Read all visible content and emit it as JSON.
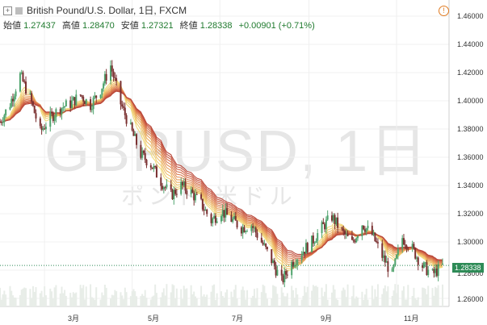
{
  "header": {
    "title": "British Pound/U.S. Dollar, 1日, FXCM",
    "open_label": "始値",
    "open_value": "1.27437",
    "high_label": "高値",
    "high_value": "1.28470",
    "low_label": "安値",
    "low_value": "1.27321",
    "close_label": "終値",
    "close_value": "1.28338",
    "change": "+0.00901 (+0.71%)"
  },
  "watermark": {
    "symbol": "GBPUSD, 1日",
    "name": "ポンド/米ドル"
  },
  "icons": {
    "expand": "expand-icon",
    "symbol": "symbol-icon",
    "alert": "alert-icon"
  },
  "colors": {
    "up": "#4fa36d",
    "down": "#7a3030",
    "price_tag": "#2e8b57",
    "ribbon": [
      "#f1da7a",
      "#f0cf74",
      "#eebf6a",
      "#ebb062",
      "#e79f5c",
      "#e28f56",
      "#dc7e51",
      "#d56e4b",
      "#cd6045",
      "#c4533f",
      "#b94739"
    ]
  },
  "chart_data": {
    "type": "candlestick",
    "title": "British Pound/U.S. Dollar, 1日, FXCM",
    "xlabel": "",
    "ylabel": "",
    "ylim": [
      1.25,
      1.47
    ],
    "y_ticks": [
      "1.26000",
      "1.28000",
      "1.30000",
      "1.32000",
      "1.34000",
      "1.36000",
      "1.38000",
      "1.40000",
      "1.42000",
      "1.44000",
      "1.46000"
    ],
    "x_ticks": [
      "3月",
      "5月",
      "7月",
      "9月",
      "11月"
    ],
    "last_price": "1.28338",
    "close_path": [
      [
        "2018-01-29",
        1.385
      ],
      [
        "2018-02-05",
        1.398
      ],
      [
        "2018-02-12",
        1.418
      ],
      [
        "2018-02-19",
        1.402
      ],
      [
        "2018-02-26",
        1.378
      ],
      [
        "2018-03-05",
        1.388
      ],
      [
        "2018-03-12",
        1.395
      ],
      [
        "2018-03-19",
        1.398
      ],
      [
        "2018-03-26",
        1.404
      ],
      [
        "2018-04-02",
        1.397
      ],
      [
        "2018-04-09",
        1.408
      ],
      [
        "2018-04-16",
        1.425
      ],
      [
        "2018-04-23",
        1.398
      ],
      [
        "2018-04-30",
        1.38
      ],
      [
        "2018-05-07",
        1.362
      ],
      [
        "2018-05-14",
        1.355
      ],
      [
        "2018-05-21",
        1.343
      ],
      [
        "2018-05-28",
        1.333
      ],
      [
        "2018-06-04",
        1.34
      ],
      [
        "2018-06-11",
        1.335
      ],
      [
        "2018-06-18",
        1.327
      ],
      [
        "2018-06-25",
        1.315
      ],
      [
        "2018-07-02",
        1.322
      ],
      [
        "2018-07-09",
        1.316
      ],
      [
        "2018-07-16",
        1.31
      ],
      [
        "2018-07-23",
        1.312
      ],
      [
        "2018-07-30",
        1.3
      ],
      [
        "2018-08-06",
        1.287
      ],
      [
        "2018-08-13",
        1.272
      ],
      [
        "2018-08-20",
        1.285
      ],
      [
        "2018-08-27",
        1.293
      ],
      [
        "2018-09-03",
        1.3
      ],
      [
        "2018-09-10",
        1.31
      ],
      [
        "2018-09-17",
        1.318
      ],
      [
        "2018-09-24",
        1.307
      ],
      [
        "2018-10-01",
        1.299
      ],
      [
        "2018-10-08",
        1.313
      ],
      [
        "2018-10-15",
        1.305
      ],
      [
        "2018-10-22",
        1.29
      ],
      [
        "2018-10-29",
        1.277
      ],
      [
        "2018-11-05",
        1.303
      ],
      [
        "2018-11-12",
        1.295
      ],
      [
        "2018-11-19",
        1.283
      ],
      [
        "2018-11-26",
        1.277
      ],
      [
        "2018-12-03",
        1.283
      ]
    ]
  }
}
